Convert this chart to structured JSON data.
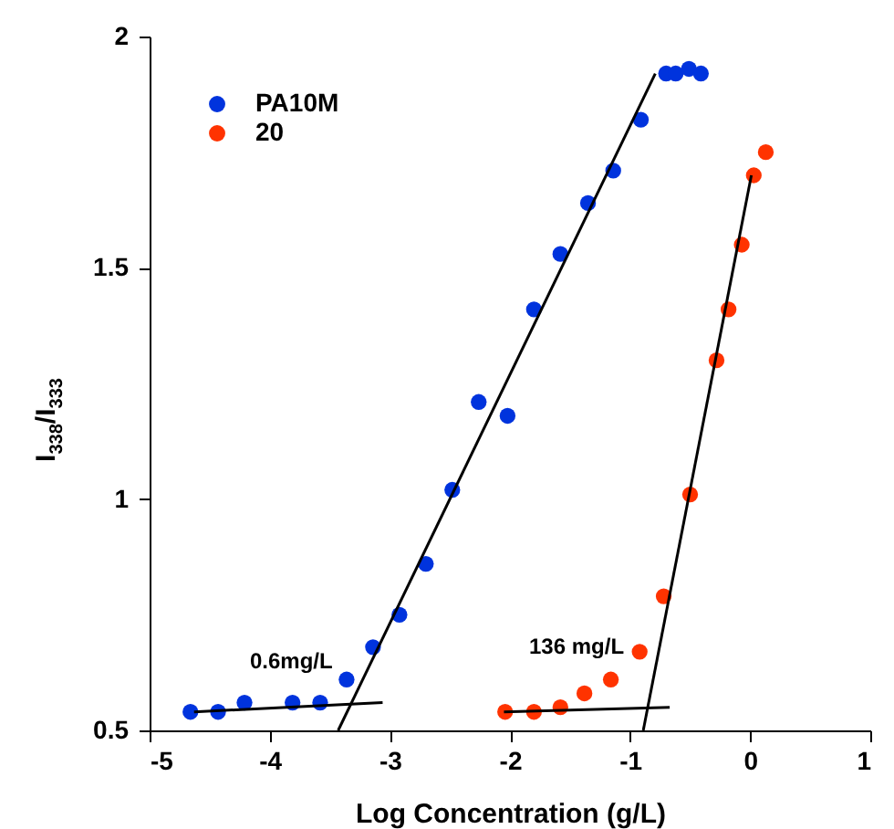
{
  "chart_data": {
    "type": "scatter",
    "xlabel": "Log Concentration  (g/L)",
    "ylabel": "I$_{338}$/I$_{333}$",
    "xlim": [
      -5,
      1
    ],
    "xticks": [
      -5,
      -4,
      -3,
      -2,
      -1,
      0,
      1
    ],
    "ylim": [
      0.5,
      2
    ],
    "yticks": [
      0.5,
      1,
      1.5,
      2
    ],
    "legend": "top left",
    "marker": "circle",
    "series": [
      {
        "name": "PA10M",
        "color": "#0033dd",
        "x": [
          -4.66,
          -4.43,
          -4.21,
          -3.81,
          -3.58,
          -3.36,
          -3.14,
          -2.92,
          -2.7,
          -2.48,
          -2.26,
          -2.02,
          -1.8,
          -1.58,
          -1.35,
          -1.14,
          -0.91,
          -0.7,
          -0.62,
          -0.51,
          -0.41
        ],
        "values": [
          0.54,
          0.54,
          0.56,
          0.56,
          0.56,
          0.61,
          0.68,
          0.75,
          0.86,
          1.02,
          1.21,
          1.18,
          1.41,
          1.53,
          1.64,
          1.71,
          1.82,
          1.92,
          1.92,
          1.93,
          1.92
        ]
      },
      {
        "name": "20",
        "color": "#ff3300",
        "x": [
          -2.04,
          -1.8,
          -1.58,
          -1.38,
          -1.16,
          -0.92,
          -0.72,
          -0.5,
          -0.28,
          -0.18,
          -0.07,
          0.03,
          0.13
        ],
        "values": [
          0.54,
          0.54,
          0.55,
          0.58,
          0.61,
          0.67,
          0.79,
          1.01,
          1.3,
          1.41,
          1.55,
          1.7,
          1.75
        ]
      },
      {
        "type": "line",
        "marker": "none",
        "color": "#000000",
        "x": [
          -4.63,
          -3.06
        ],
        "values": [
          0.54,
          0.56
        ]
      },
      {
        "type": "line",
        "marker": "none",
        "color": "#000000",
        "x": [
          -3.43,
          -0.79
        ],
        "values": [
          0.5,
          1.92
        ]
      },
      {
        "type": "line",
        "marker": "none",
        "color": "#000000",
        "x": [
          -2.05,
          -0.67
        ],
        "values": [
          0.54,
          0.55
        ]
      },
      {
        "type": "line",
        "marker": "none",
        "color": "#000000",
        "x": [
          -0.89,
          0.01
        ],
        "values": [
          0.5,
          1.7
        ]
      }
    ],
    "annotations": [
      "0.6mg/L",
      "136 mg/L"
    ]
  }
}
